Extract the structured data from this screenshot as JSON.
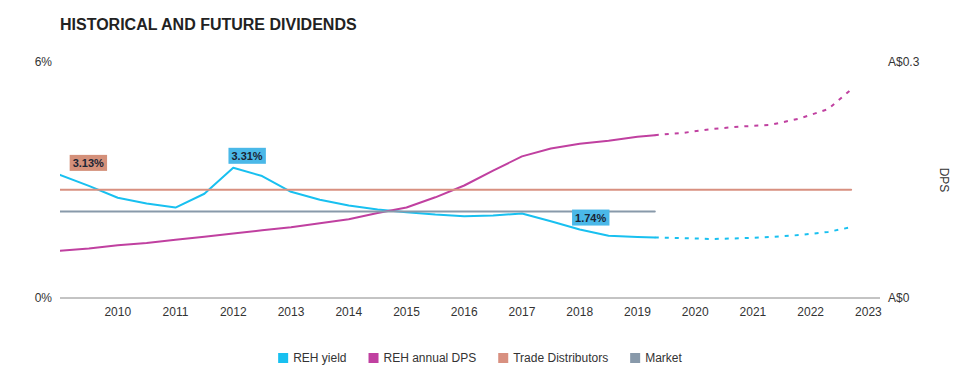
{
  "chart_data": {
    "type": "line",
    "title": "HISTORICAL AND FUTURE DIVIDENDS",
    "series": [
      {
        "name": "REH yield",
        "color": "#18c0f0",
        "line_style": "solid",
        "x": [
          2009.0,
          2009.5,
          2010.0,
          2010.5,
          2011.0,
          2011.5,
          2012.0,
          2012.5,
          2013.0,
          2013.5,
          2014.0,
          2014.5,
          2015.0,
          2015.5,
          2016.0,
          2016.5,
          2017.0,
          2017.5,
          2018.0,
          2018.5,
          2019.0,
          2019.3
        ],
        "values": [
          3.13,
          2.85,
          2.55,
          2.4,
          2.3,
          2.65,
          3.31,
          3.1,
          2.7,
          2.5,
          2.35,
          2.25,
          2.18,
          2.12,
          2.08,
          2.1,
          2.15,
          1.95,
          1.74,
          1.58,
          1.55,
          1.54
        ]
      },
      {
        "color": "#18c0f0",
        "line_style": "dashed",
        "x": [
          2019.3,
          2019.8,
          2020.3,
          2020.8,
          2021.3,
          2021.8,
          2022.3,
          2022.7
        ],
        "values": [
          1.54,
          1.52,
          1.5,
          1.52,
          1.55,
          1.6,
          1.68,
          1.8
        ]
      },
      {
        "name": "REH annual DPS",
        "color": "#c040a0",
        "line_style": "solid",
        "axis": "y2",
        "x": [
          2009.0,
          2009.5,
          2010.0,
          2010.5,
          2011.0,
          2011.5,
          2012.0,
          2012.5,
          2013.0,
          2013.5,
          2014.0,
          2014.5,
          2015.0,
          2015.5,
          2016.0,
          2016.5,
          2017.0,
          2017.5,
          2018.0,
          2018.5,
          2019.0,
          2019.3
        ],
        "values": [
          0.06,
          0.063,
          0.067,
          0.07,
          0.074,
          0.078,
          0.082,
          0.086,
          0.09,
          0.095,
          0.1,
          0.108,
          0.115,
          0.128,
          0.143,
          0.162,
          0.18,
          0.19,
          0.196,
          0.2,
          0.205,
          0.207
        ]
      },
      {
        "color": "#c040a0",
        "line_style": "dashed",
        "axis": "y2",
        "x": [
          2019.3,
          2019.8,
          2020.3,
          2020.8,
          2021.3,
          2021.8,
          2022.3,
          2022.7
        ],
        "values": [
          0.207,
          0.21,
          0.215,
          0.218,
          0.22,
          0.228,
          0.24,
          0.265
        ]
      },
      {
        "name": "Trade Distributors",
        "color": "#d89080",
        "line_style": "solid",
        "x": [
          2009.0,
          2022.7
        ],
        "values": [
          2.75,
          2.75
        ]
      },
      {
        "name": "Market",
        "color": "#8899aa",
        "line_style": "solid",
        "x": [
          2009.0,
          2019.3
        ],
        "values": [
          2.2,
          2.2
        ]
      }
    ],
    "annotations": [
      {
        "text": "3.13%",
        "x": 2009.15,
        "y": 3.13,
        "color": "#d4907a"
      },
      {
        "text": "3.31%",
        "x": 2011.9,
        "y": 3.31,
        "color": "#4ab8e8"
      },
      {
        "text": "1.74%",
        "x": 2017.85,
        "y": 1.74,
        "color": "#4ab8e8"
      }
    ],
    "xlim": [
      2009.0,
      2023.2
    ],
    "xticks": [
      2010,
      2011,
      2012,
      2013,
      2014,
      2015,
      2016,
      2017,
      2018,
      2019,
      2020,
      2021,
      2022,
      2023
    ],
    "ylim": [
      0.0,
      6.0
    ],
    "yticks": [
      {
        "value": 0,
        "label": "0%"
      },
      {
        "value": 6,
        "label": "6%"
      }
    ],
    "y2lim": [
      0,
      0.3
    ],
    "y2ticks": [
      {
        "value": 0,
        "label": "A$0"
      },
      {
        "value": 0.3,
        "label": "A$0.3"
      }
    ],
    "y2label": "DPS",
    "grid": false,
    "legend": "bottom"
  }
}
